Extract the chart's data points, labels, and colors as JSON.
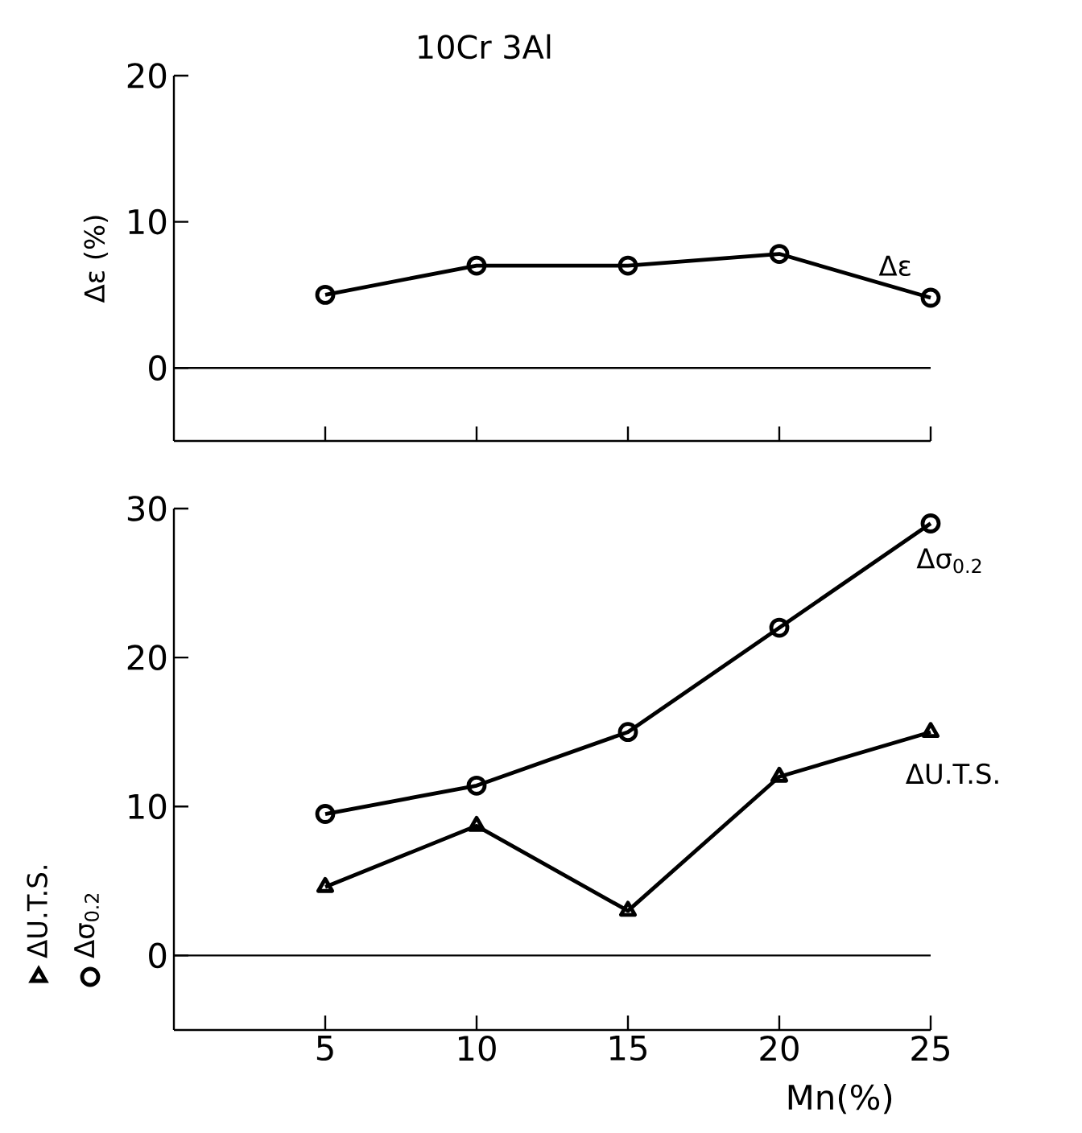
{
  "chart_data": [
    {
      "type": "line",
      "title": "10Cr   3Al",
      "ylabel": "Δε  (%)",
      "x": [
        5,
        10,
        15,
        20,
        25
      ],
      "series": [
        {
          "name": "Δε",
          "color": "#000000",
          "values": [
            5,
            7,
            7,
            7.8,
            4.8
          ],
          "marker": "circle"
        }
      ],
      "xlim": [
        0,
        25
      ],
      "ylim": [
        -5,
        20
      ],
      "xticks": [
        5,
        10,
        15,
        20,
        25
      ],
      "yticks": [
        0,
        10,
        20
      ],
      "tick_labels": "y",
      "legend": "right",
      "ref_lines": [
        {
          "axis": "y",
          "value": 0,
          "color": "#000000"
        }
      ]
    },
    {
      "type": "line",
      "xlabel": "Mn(%)",
      "x": [
        5,
        10,
        15,
        20,
        25
      ],
      "series": [
        {
          "name": "ΔU.T.S.",
          "color": "#000000",
          "values": [
            4.6,
            8.7,
            3,
            12,
            15
          ],
          "marker": "triangle"
        },
        {
          "name": "Δσ$_{0.2}$",
          "color": "#000000",
          "values": [
            9.5,
            11.4,
            15,
            22,
            29
          ],
          "marker": "circle"
        }
      ],
      "xlim": [
        0,
        25
      ],
      "ylim": [
        -5,
        30
      ],
      "xticks": [
        5,
        10,
        15,
        20,
        25
      ],
      "yticks": [
        0,
        10,
        20,
        30
      ],
      "legend": "right",
      "ref_lines": [
        {
          "axis": "y",
          "value": 0,
          "color": "#000000"
        }
      ]
    }
  ]
}
